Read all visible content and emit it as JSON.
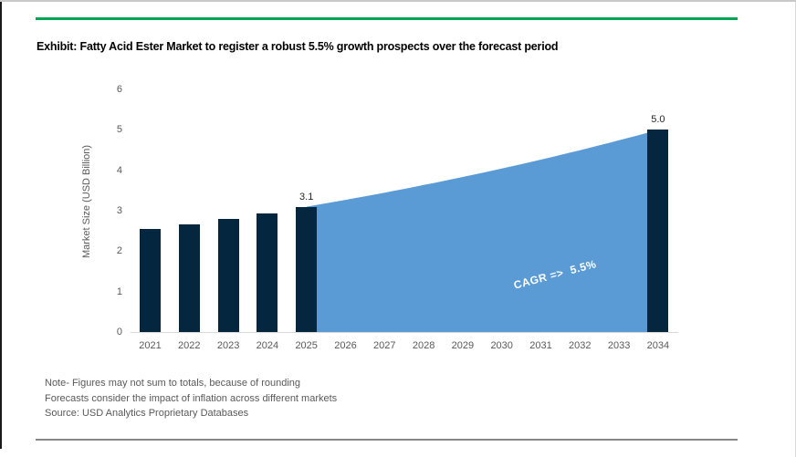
{
  "header": {
    "title": "Exhibit: Fatty Acid Ester Market to register a robust 5.5% growth prospects over the forecast period"
  },
  "chart_data": {
    "type": "bar",
    "title": "Exhibit: Fatty Acid Ester Market to register a robust 5.5% growth prospects over the forecast period",
    "xlabel": "",
    "ylabel": "Market Size (USD Billion)",
    "ylim": [
      0,
      6
    ],
    "yticks": [
      "0",
      "1",
      "2",
      "3",
      "4",
      "5",
      "6"
    ],
    "grid": "off",
    "legend": "none",
    "categories": [
      "2021",
      "2022",
      "2023",
      "2024",
      "2025",
      "2026",
      "2027",
      "2028",
      "2029",
      "2030",
      "2031",
      "2032",
      "2033",
      "2034"
    ],
    "bars": [
      {
        "year": "2021",
        "value": 2.55,
        "label": ""
      },
      {
        "year": "2022",
        "value": 2.67,
        "label": ""
      },
      {
        "year": "2023",
        "value": 2.8,
        "label": ""
      },
      {
        "year": "2024",
        "value": 2.93,
        "label": ""
      },
      {
        "year": "2025",
        "value": 3.1,
        "label": "3.1"
      },
      {
        "year": "2034",
        "value": 5.0,
        "label": "5.0"
      }
    ],
    "forecast_area": {
      "start_year": "2025",
      "start_value": 3.1,
      "end_year": "2034",
      "end_value": 5.0,
      "implied_values_2026_2033": [
        3.27,
        3.45,
        3.64,
        3.84,
        4.05,
        4.28,
        4.51,
        4.76
      ],
      "cagr_label": "CAGR =>  5.5%"
    },
    "colors": {
      "bar": "#04263F",
      "area": "#5B9BD5",
      "accent_green": "#00A651",
      "axis_text": "#595959"
    }
  },
  "notes": [
    "Note- Figures may not sum to totals, because of rounding",
    "Forecasts consider the impact of inflation across different markets",
    "Source: USD Analytics Proprietary Databases"
  ]
}
